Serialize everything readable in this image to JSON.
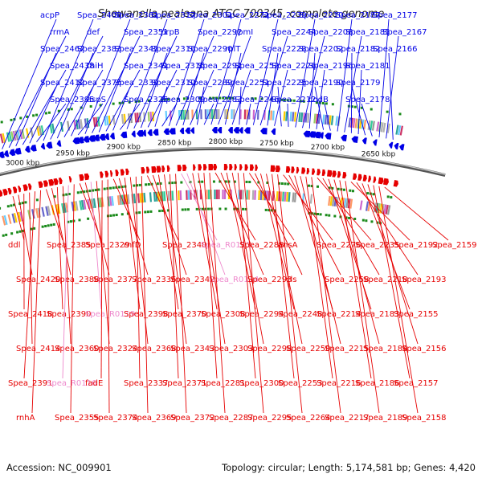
{
  "title": "Shewanella pealeana ATCC 700345, complete genome",
  "footer": {
    "accession": "Accession: NC_009901",
    "summary": "Topology: circular; Length: 5,174,581 bp; Genes: 4,420"
  },
  "colors": {
    "forward": "#0000e6",
    "reverse": "#e60000",
    "rna": "#ee88cc",
    "marker": "#1a8a1a",
    "backbone": "#808080"
  },
  "ticks": [
    "3000 kbp",
    "2950 kbp",
    "2900 kbp",
    "2850 kbp",
    "2800 kbp",
    "2750 kbp",
    "2700 kbp",
    "2650 kbp"
  ],
  "top_labels": [
    "acpP",
    "rrmA",
    "Spea_2467",
    "Spea_2438",
    "Spea_2412",
    "Spea_2395",
    "Spea_2408",
    "def",
    "Spea_2383",
    "thiH",
    "Spea_2375",
    "aspS",
    "Spea_2361",
    "Spea_2351",
    "Spea_2345",
    "Spea_2341",
    "Spea_2339",
    "Spea_2325",
    "Spea_2317",
    "prpB",
    "Spea_2316",
    "Spea_2315",
    "Spea_2310",
    "Spea_2309",
    "Spea_2301",
    "Spea_2292",
    "Spea_2290",
    "Spea_2291",
    "Spea_2289",
    "Spea_2283",
    "Spea_2271",
    "rpmI",
    "rplT",
    "Spea_2252",
    "Spea_2251",
    "Spea_2246",
    "Spea_2239",
    "Spea_2244",
    "Spea_2228",
    "Spea_2226",
    "Spea_2225",
    "Spea_2212",
    "Spea_2210",
    "Spea_2208",
    "Spea_2202",
    "Spea_2196",
    "Spea_2190",
    "codB",
    "Spea_2187",
    "Spea_2185",
    "Spea_2182",
    "Spea_2181",
    "Spea_2179",
    "Spea_2178",
    "Spea_2177",
    "Spea_2167",
    "Spea_2166"
  ],
  "bottom_labels": [
    "ddl",
    "Spea_2420",
    "Spea_2418",
    "Spea_2414",
    "Spea_2391",
    "rnhA",
    "Spea_2385",
    "Spea_2388",
    "Spea_2390",
    "Spea_2360",
    "Spea_R0116",
    "Spea_2355",
    "Spea_2329",
    "Spea_2377",
    "Spea_R0119",
    "Spea_2324",
    "fadE",
    "Spea_2374",
    "rnfD",
    "Spea_2336",
    "Spea_2398",
    "Spea_2368",
    "Spea_2337",
    "Spea_2369",
    "Spea_2340",
    "Spea_2342",
    "Spea_2370",
    "Spea_2343",
    "Spea_2371",
    "Spea_2372",
    "Spea_R0113",
    "Spea_R0114",
    "Spea_2308",
    "Spea_2303",
    "Spea_2281",
    "Spea_2287",
    "Spea_2288",
    "Spea_2293",
    "Spea_2294",
    "Spea_2298",
    "Spea_2300",
    "Spea_2295",
    "ansA",
    "cls",
    "Spea_2248",
    "Spea_2250",
    "Spea_2253",
    "Spea_2264",
    "Spea_2276",
    "Spea_2258",
    "Spea_2214",
    "Spea_2215",
    "Spea_2216",
    "Spea_2217",
    "Spea_2235",
    "Spea_2218",
    "Spea_2183",
    "Spea_2184",
    "Spea_2186",
    "Spea_2189",
    "Spea_2192",
    "Spea_2193",
    "Spea_2155",
    "Spea_2156",
    "Spea_2157",
    "Spea_2158",
    "Spea_2159"
  ]
}
